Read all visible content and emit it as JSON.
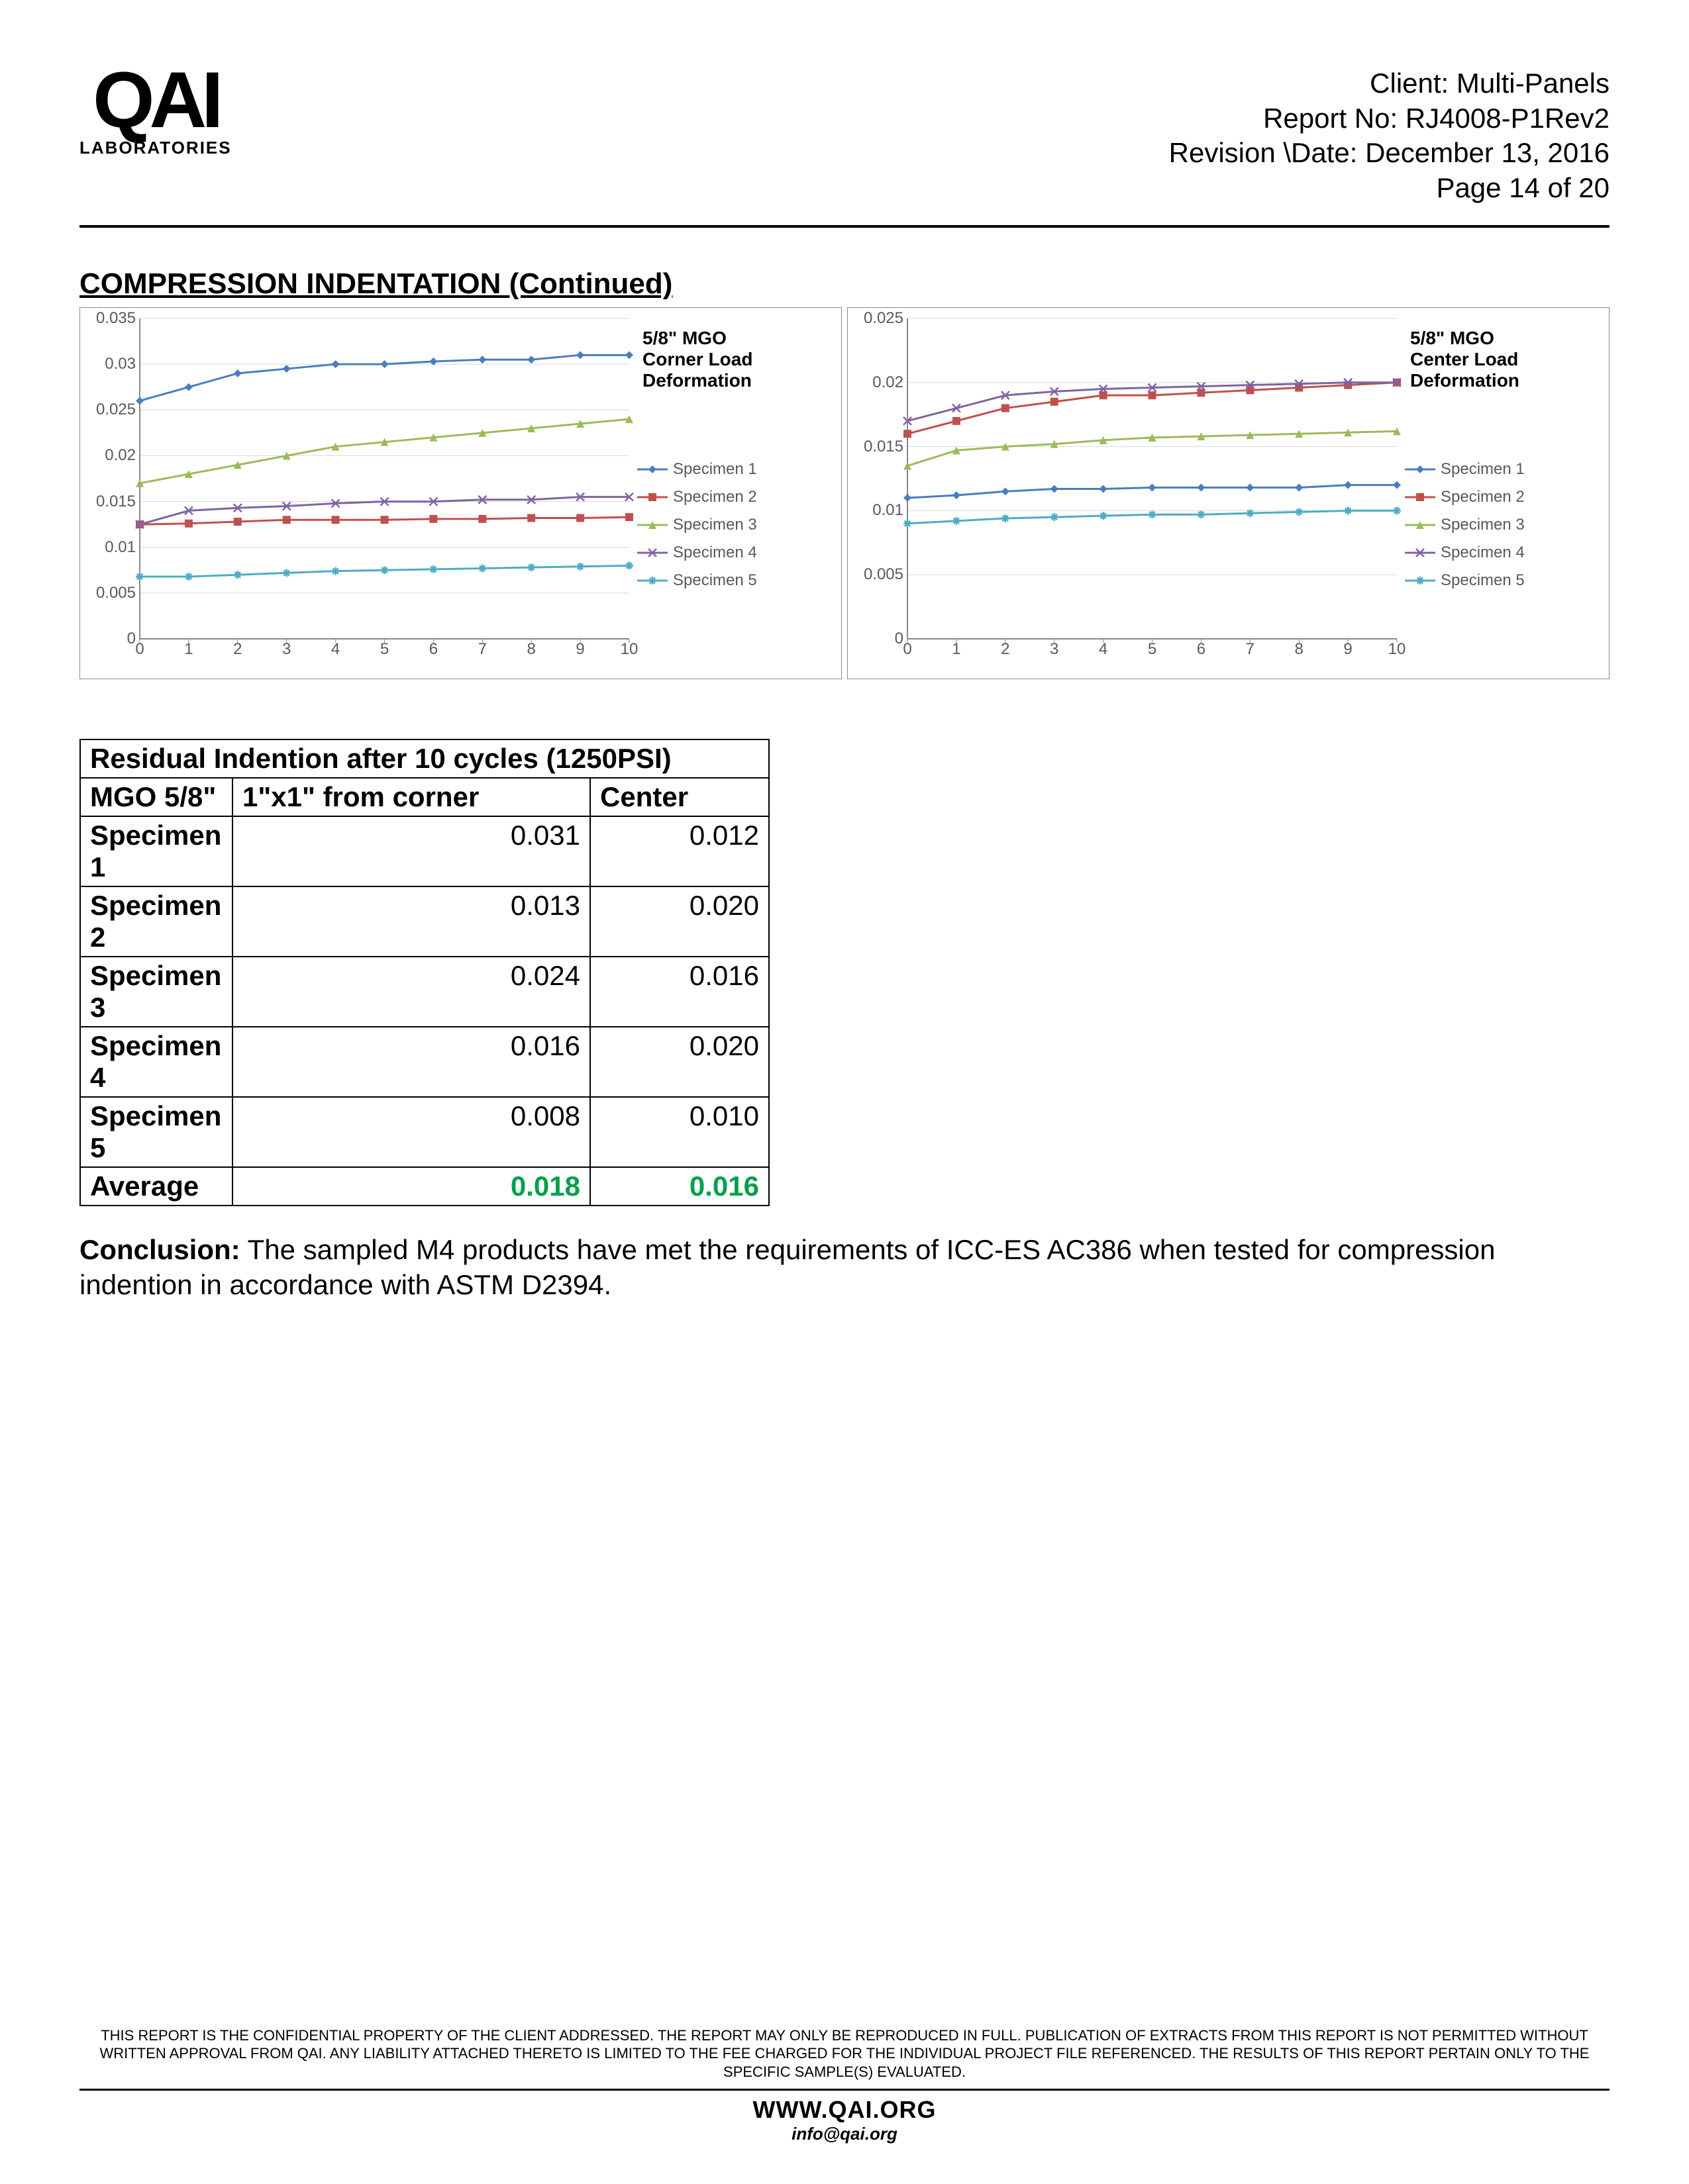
{
  "header": {
    "logo_main": "QAI",
    "logo_sub": "LABORATORIES",
    "client_label": "Client:",
    "client": "Multi-Panels",
    "report_label": "Report No:",
    "report": "RJ4008-P1Rev2",
    "revision_label": "Revision \\Date:",
    "revision": "December 13, 2016",
    "page": "Page 14 of 20"
  },
  "section_title": "COMPRESSION INDENTATION (Continued)",
  "charts": {
    "legend_labels": [
      "Specimen 1",
      "Specimen 2",
      "Specimen 3",
      "Specimen 4",
      "Specimen 5"
    ],
    "legend_colors": [
      "#4a7ebb",
      "#c0504d",
      "#9bbb59",
      "#8064a2",
      "#4bacc6"
    ],
    "legend_markers": [
      "diamond",
      "square",
      "triangle",
      "x",
      "asterisk"
    ],
    "x_ticks": [
      0,
      1,
      2,
      3,
      4,
      5,
      6,
      7,
      8,
      9,
      10
    ],
    "grid_color": "#d9d9d9",
    "axis_color": "#888888",
    "text_color": "#595959",
    "tick_fontsize": 24,
    "title_fontsize": 28,
    "legend_fontsize": 24,
    "line_width": 3,
    "marker_size": 6,
    "corner": {
      "title_l1": "5/8\" MGO",
      "title_l2": "Corner Load",
      "title_l3": "Deformation",
      "ylim": [
        0,
        0.035
      ],
      "y_ticks": [
        0,
        0.005,
        0.01,
        0.015,
        0.02,
        0.025,
        0.03,
        0.035
      ],
      "series": {
        "s1": [
          0.026,
          0.0275,
          0.029,
          0.0295,
          0.03,
          0.03,
          0.0303,
          0.0305,
          0.0305,
          0.031,
          0.031
        ],
        "s2": [
          0.0125,
          0.0126,
          0.0128,
          0.013,
          0.013,
          0.013,
          0.0131,
          0.0131,
          0.0132,
          0.0132,
          0.0133
        ],
        "s3": [
          0.017,
          0.018,
          0.019,
          0.02,
          0.021,
          0.0215,
          0.022,
          0.0225,
          0.023,
          0.0235,
          0.024
        ],
        "s4": [
          0.0125,
          0.014,
          0.0143,
          0.0145,
          0.0148,
          0.015,
          0.015,
          0.0152,
          0.0152,
          0.0155,
          0.0155
        ],
        "s5": [
          0.0068,
          0.0068,
          0.007,
          0.0072,
          0.0074,
          0.0075,
          0.0076,
          0.0077,
          0.0078,
          0.0079,
          0.008
        ]
      }
    },
    "center": {
      "title_l1": "5/8\" MGO",
      "title_l2": "Center Load",
      "title_l3": "Deformation",
      "ylim": [
        0,
        0.025
      ],
      "y_ticks": [
        0,
        0.005,
        0.01,
        0.015,
        0.02,
        0.025
      ],
      "series": {
        "s1": [
          0.011,
          0.0112,
          0.0115,
          0.0117,
          0.0117,
          0.0118,
          0.0118,
          0.0118,
          0.0118,
          0.012,
          0.012
        ],
        "s2": [
          0.016,
          0.017,
          0.018,
          0.0185,
          0.019,
          0.019,
          0.0192,
          0.0194,
          0.0196,
          0.0198,
          0.02
        ],
        "s3": [
          0.0135,
          0.0147,
          0.015,
          0.0152,
          0.0155,
          0.0157,
          0.0158,
          0.0159,
          0.016,
          0.0161,
          0.0162
        ],
        "s4": [
          0.017,
          0.018,
          0.019,
          0.0193,
          0.0195,
          0.0196,
          0.0197,
          0.0198,
          0.0199,
          0.02,
          0.02
        ],
        "s5": [
          0.009,
          0.0092,
          0.0094,
          0.0095,
          0.0096,
          0.0097,
          0.0097,
          0.0098,
          0.0099,
          0.01,
          0.01
        ]
      }
    }
  },
  "table": {
    "title": "Residual Indention after 10 cycles (1250PSI)",
    "col1_header": "MGO 5/8\"",
    "col2_header": "1\"x1\" from corner",
    "col3_header": "Center",
    "rows": [
      {
        "label": "Specimen 1",
        "corner": "0.031",
        "center": "0.012"
      },
      {
        "label": "Specimen 2",
        "corner": "0.013",
        "center": "0.020"
      },
      {
        "label": "Specimen 3",
        "corner": "0.024",
        "center": "0.016"
      },
      {
        "label": "Specimen 4",
        "corner": "0.016",
        "center": "0.020"
      },
      {
        "label": "Specimen 5",
        "corner": "0.008",
        "center": "0.010"
      }
    ],
    "avg_label": "Average",
    "avg_corner": "0.018",
    "avg_center": "0.016",
    "col_widths": {
      "c1": 230,
      "c2": 540,
      "c3": 270
    },
    "avg_color": "#00a04a"
  },
  "conclusion": {
    "label": "Conclusion:",
    "text": " The sampled M4 products have met the requirements of ICC-ES AC386 when tested for compression indention in accordance with ASTM D2394."
  },
  "footer": {
    "disclaimer": "THIS REPORT IS THE CONFIDENTIAL PROPERTY OF THE CLIENT ADDRESSED. THE REPORT MAY ONLY BE REPRODUCED IN FULL. PUBLICATION OF EXTRACTS FROM THIS REPORT IS NOT PERMITTED WITHOUT WRITTEN APPROVAL FROM QAI. ANY LIABILITY ATTACHED THERETO IS LIMITED TO THE FEE CHARGED FOR THE INDIVIDUAL PROJECT FILE REFERENCED. THE RESULTS OF THIS REPORT PERTAIN ONLY TO THE SPECIFIC SAMPLE(S) EVALUATED.",
    "site": "WWW.QAI.ORG",
    "email": "info@qai.org"
  }
}
